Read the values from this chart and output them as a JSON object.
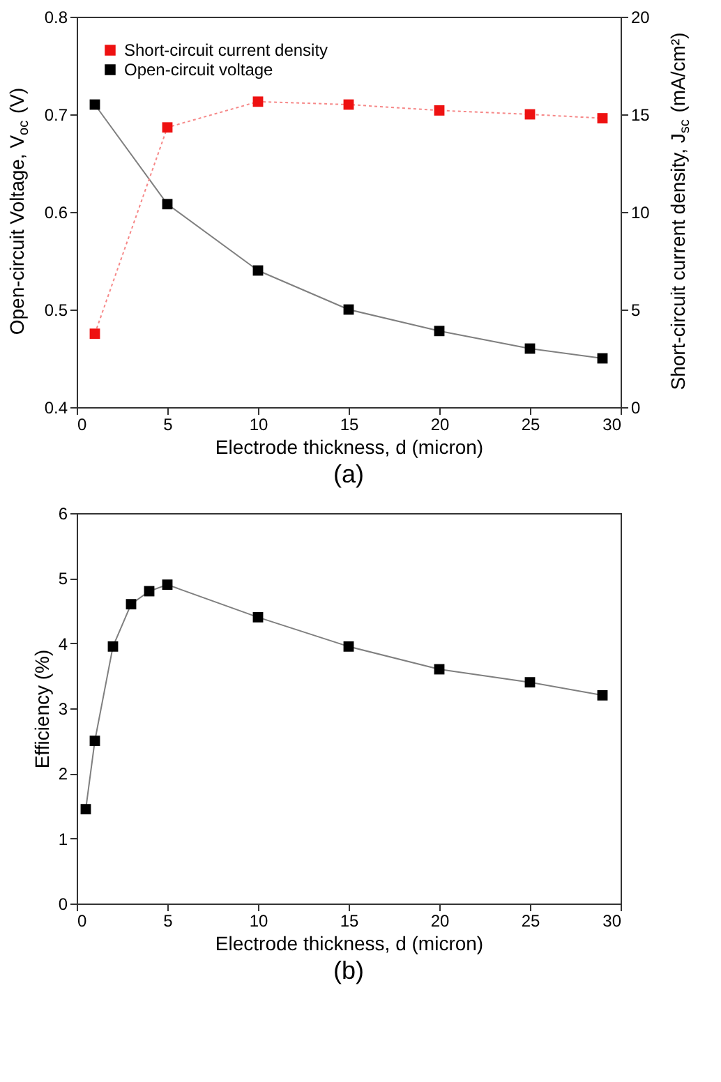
{
  "chart_data": [
    {
      "type": "line",
      "title": "(a)",
      "xlabel": "Electrode thickness, d (micron)",
      "ylabel": "Open-circuit Voltage, V$_{oc}$ (V)",
      "y2label": "Short-circuit current density, J$_{sc}$ (mA/cm²)",
      "x": [
        1,
        5,
        10,
        15,
        20,
        25,
        29
      ],
      "series": [
        {
          "name": "Short-circuit current density",
          "color": "#ee1111",
          "values": [
            3.76,
            14.33,
            15.65,
            15.5,
            15.2,
            15.0,
            14.8
          ],
          "axis": "y2",
          "line_style": "dotted"
        },
        {
          "name": "Open-circuit voltage",
          "color": "#000000",
          "values": [
            0.71,
            0.608,
            0.54,
            0.5,
            0.478,
            0.46,
            0.45
          ],
          "line_style": "solid"
        }
      ],
      "xlim": [
        0,
        30
      ],
      "xticks": [
        0,
        5,
        10,
        15,
        20,
        25,
        30
      ],
      "ylim": [
        0.4,
        0.8
      ],
      "yticks": [
        0.4,
        0.5,
        0.6,
        0.7,
        0.8
      ],
      "y2lim": [
        0,
        20
      ],
      "y2ticks": [
        0,
        5,
        10,
        15,
        20
      ],
      "marker": "square",
      "grid": false,
      "legend": "top left"
    },
    {
      "type": "line",
      "title": "(b)",
      "xlabel": "Electrode thickness, d (micron)",
      "ylabel": "Efficiency (%)",
      "x": [
        0.5,
        1,
        2,
        3,
        4,
        5,
        10,
        15,
        20,
        25,
        29
      ],
      "series": [
        {
          "color": "#000000",
          "values": [
            1.45,
            2.5,
            3.95,
            4.6,
            4.8,
            4.9,
            4.4,
            3.95,
            3.6,
            3.4,
            3.2
          ],
          "line_style": "solid"
        }
      ],
      "xlim": [
        0,
        30
      ],
      "xticks": [
        0,
        5,
        10,
        15,
        20,
        25,
        30
      ],
      "ylim": [
        0,
        6
      ],
      "yticks": [
        0,
        1,
        2,
        3,
        4,
        5,
        6
      ],
      "marker": "square",
      "grid": false,
      "legend": false
    }
  ]
}
